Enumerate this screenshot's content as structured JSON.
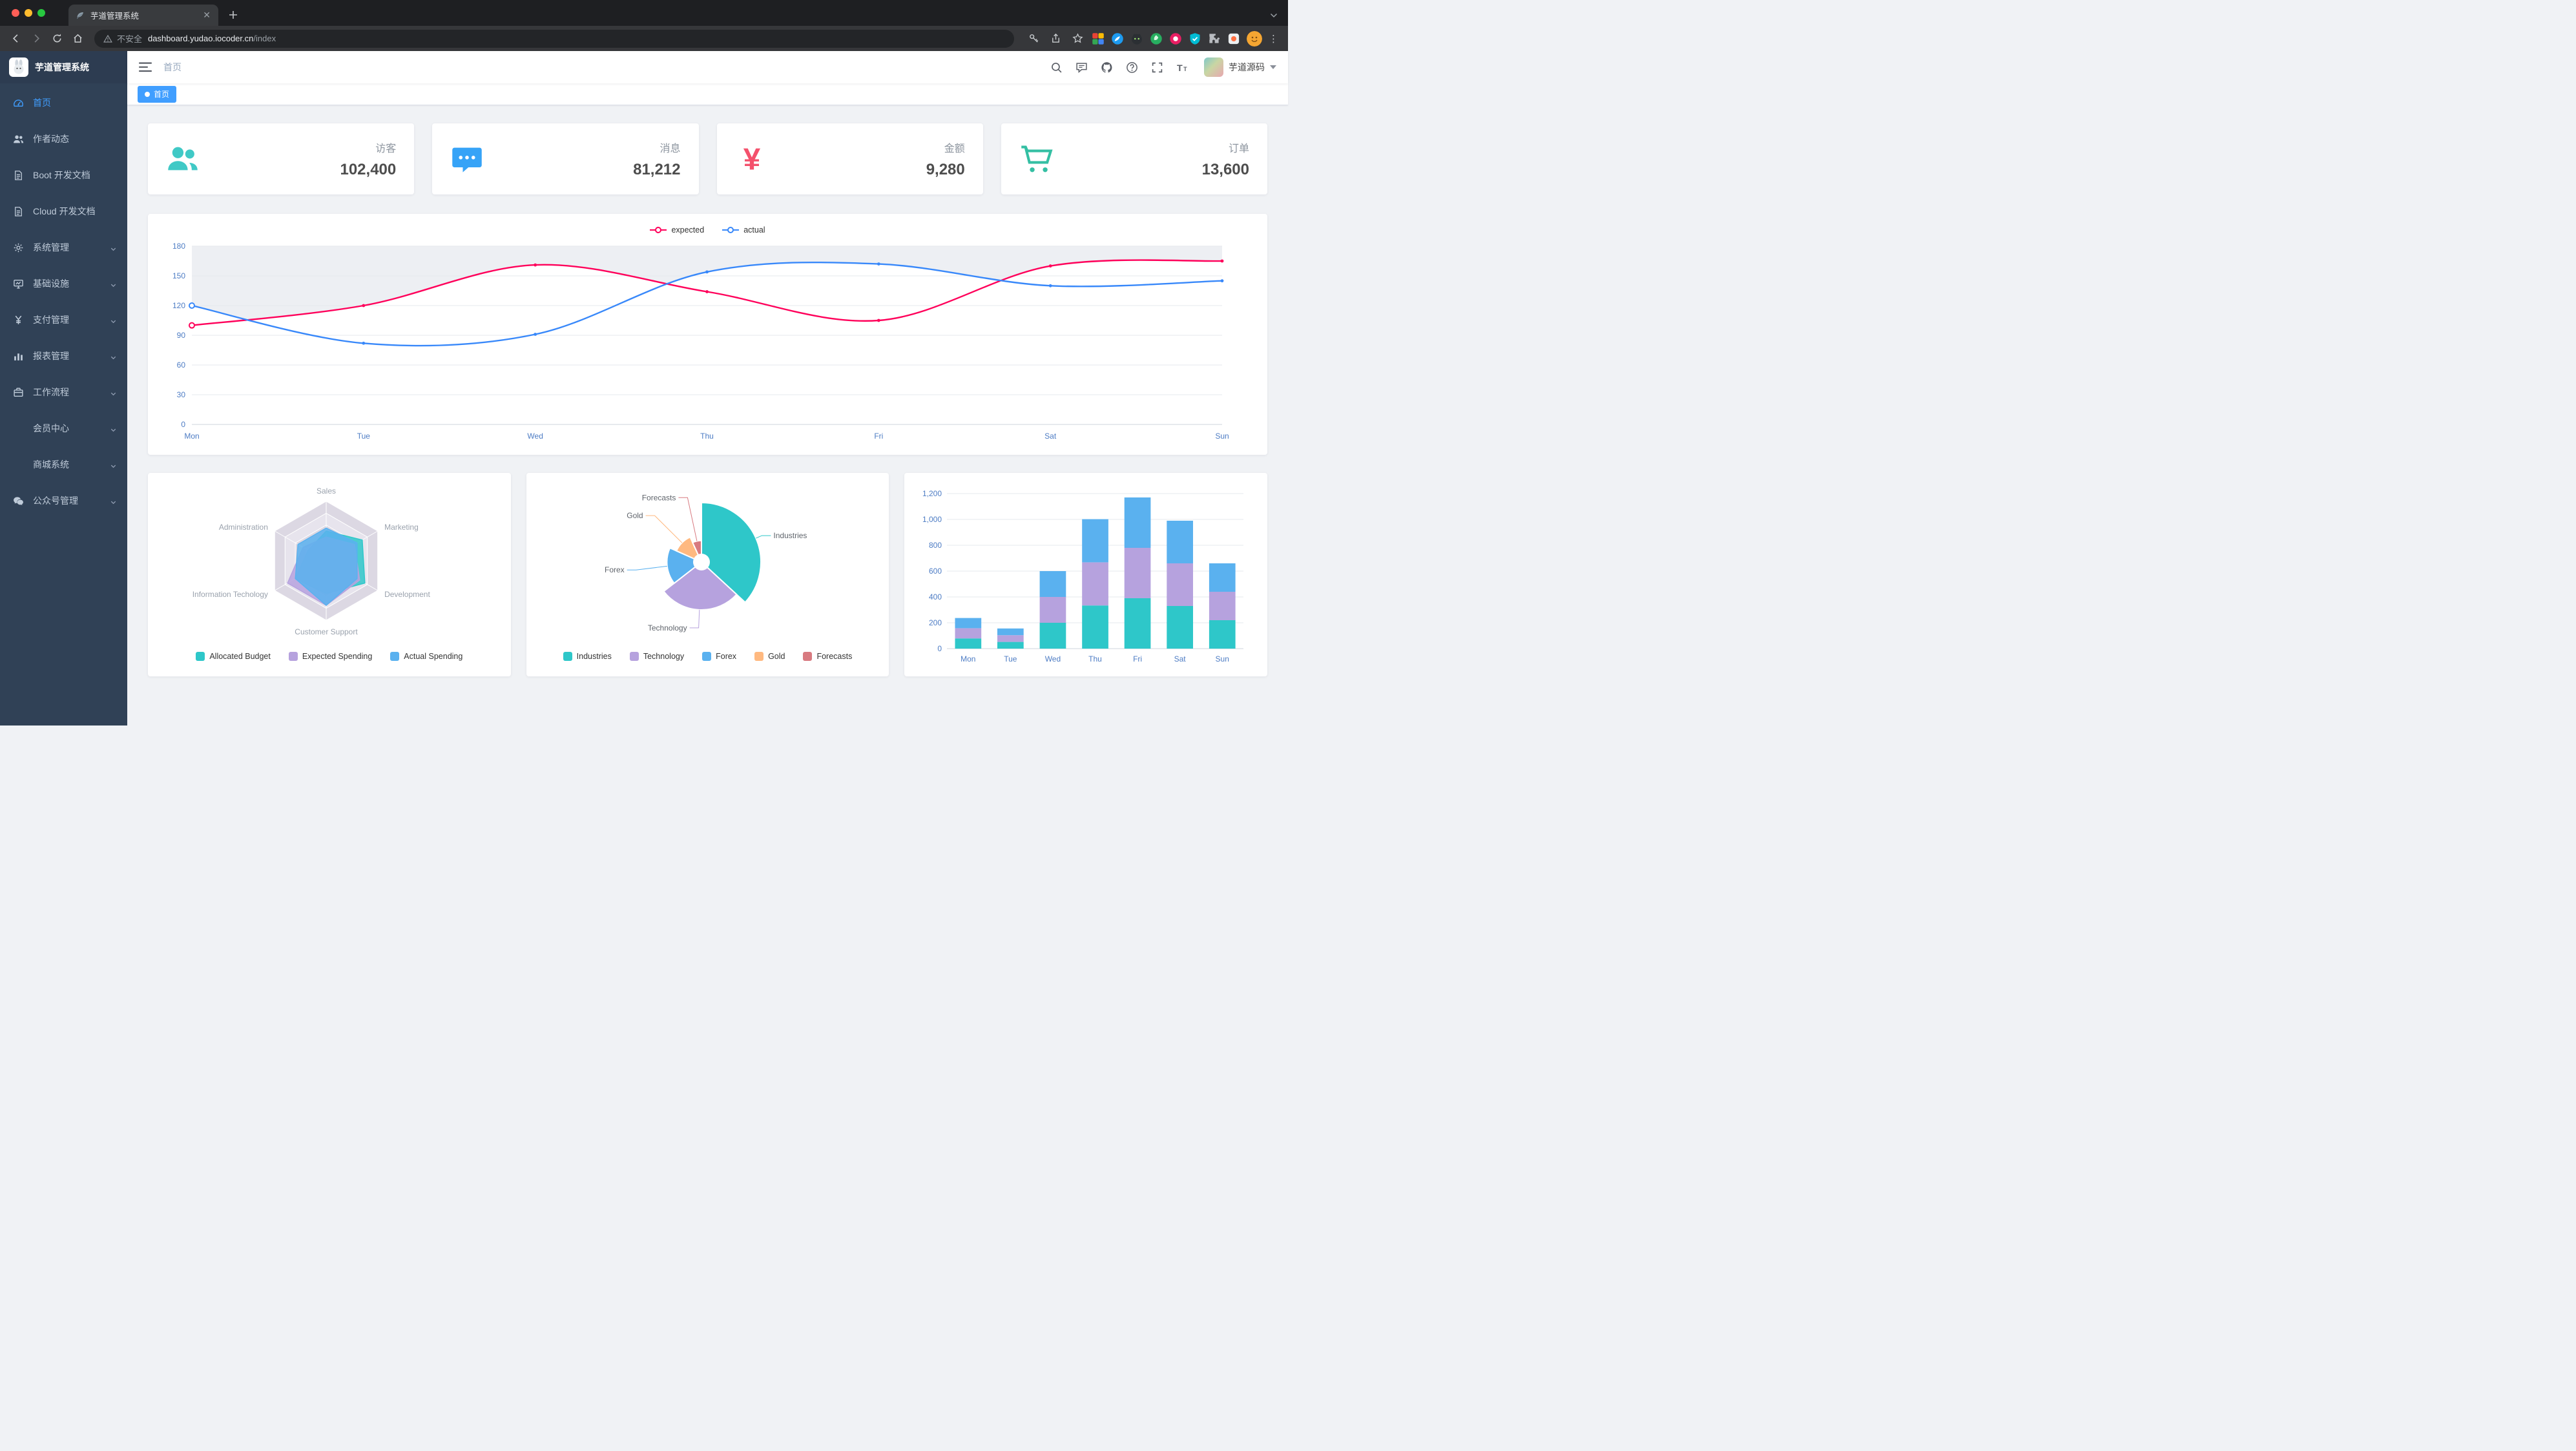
{
  "browser": {
    "tab_title": "芋道管理系统",
    "security_label": "不安全",
    "url_host": "dashboard.yudao.iocoder.cn",
    "url_path": "/index"
  },
  "theme": {
    "accent": "#409eff",
    "sidebar_bg": "#304156",
    "sidebar_text": "#bfcbd9"
  },
  "sidebar": {
    "logo_title": "芋道管理系统",
    "items": [
      {
        "key": "home",
        "label": "首页",
        "icon": "dashboard-icon",
        "active": true,
        "expandable": false
      },
      {
        "key": "author",
        "label": "作者动态",
        "icon": "people-icon",
        "active": false,
        "expandable": false
      },
      {
        "key": "boot-docs",
        "label": "Boot 开发文档",
        "icon": "document-icon",
        "active": false,
        "expandable": false
      },
      {
        "key": "cloud-docs",
        "label": "Cloud 开发文档",
        "icon": "document-icon",
        "active": false,
        "expandable": false
      },
      {
        "key": "system",
        "label": "系统管理",
        "icon": "gear-icon",
        "active": false,
        "expandable": true
      },
      {
        "key": "infra",
        "label": "基础设施",
        "icon": "monitor-icon",
        "active": false,
        "expandable": true
      },
      {
        "key": "payment",
        "label": "支付管理",
        "icon": "yen-icon",
        "active": false,
        "expandable": true
      },
      {
        "key": "report",
        "label": "报表管理",
        "icon": "chart-icon",
        "active": false,
        "expandable": true
      },
      {
        "key": "workflow",
        "label": "工作流程",
        "icon": "briefcase-icon",
        "active": false,
        "expandable": true
      },
      {
        "key": "member",
        "label": "会员中心",
        "icon": null,
        "active": false,
        "expandable": true
      },
      {
        "key": "mall",
        "label": "商城系统",
        "icon": null,
        "active": false,
        "expandable": true
      },
      {
        "key": "mp",
        "label": "公众号管理",
        "icon": "wechat-icon",
        "active": false,
        "expandable": true
      }
    ]
  },
  "navbar": {
    "breadcrumb": "首页",
    "username": "芋道源码",
    "icons": [
      "hamburger-icon",
      "search-icon",
      "message-icon",
      "github-icon",
      "help-icon",
      "fullscreen-icon",
      "font-size-icon",
      "caret-down-icon"
    ]
  },
  "tags": [
    {
      "label": "首页",
      "active": true
    }
  ],
  "stats": [
    {
      "label": "访客",
      "value": "102,400",
      "icon": "peoples-icon",
      "color": "#40c9c6"
    },
    {
      "label": "消息",
      "value": "81,212",
      "icon": "message-icon",
      "color": "#36a3f7"
    },
    {
      "label": "金额",
      "value": "9,280",
      "icon": "money-icon",
      "color": "#f4516c"
    },
    {
      "label": "订单",
      "value": "13,600",
      "icon": "cart-icon",
      "color": "#34bfa3"
    }
  ],
  "chart_data": [
    {
      "type": "line",
      "x": [
        "Mon",
        "Tue",
        "Wed",
        "Thu",
        "Fri",
        "Sat",
        "Sun"
      ],
      "series": [
        {
          "name": "expected",
          "color": "#FF005A",
          "values": [
            100,
            120,
            161,
            134,
            105,
            160,
            165
          ]
        },
        {
          "name": "actual",
          "color": "#3888fa",
          "values": [
            120,
            82,
            91,
            154,
            162,
            140,
            145
          ]
        }
      ],
      "ylim": [
        0,
        180
      ],
      "yticks": [
        0,
        30,
        60,
        90,
        120,
        150,
        180
      ],
      "legend_position": "top",
      "grid": true
    },
    {
      "type": "radar",
      "levels": 5,
      "indicators": [
        {
          "name": "Sales",
          "max": 10000
        },
        {
          "name": "Administration",
          "max": 20000
        },
        {
          "name": "Information Techology",
          "max": 20000
        },
        {
          "name": "Customer Support",
          "max": 20000
        },
        {
          "name": "Development",
          "max": 20000
        },
        {
          "name": "Marketing",
          "max": 20000
        }
      ],
      "series": [
        {
          "name": "Allocated Budget",
          "color": "#2ec7c9",
          "values": [
            5000,
            7000,
            12000,
            11000,
            15000,
            14000
          ]
        },
        {
          "name": "Expected Spending",
          "color": "#b6a2de",
          "values": [
            4000,
            9000,
            15000,
            15000,
            13000,
            11000
          ]
        },
        {
          "name": "Actual Spending",
          "color": "#5ab1ef",
          "values": [
            5500,
            11000,
            12000,
            15000,
            12000,
            12000
          ]
        }
      ],
      "legend_position": "bottom"
    },
    {
      "type": "pie",
      "rose": true,
      "slices": [
        {
          "name": "Industries",
          "value": 320,
          "color": "#2ec7c9"
        },
        {
          "name": "Technology",
          "value": 240,
          "color": "#b6a2de"
        },
        {
          "name": "Forex",
          "value": 149,
          "color": "#5ab1ef"
        },
        {
          "name": "Gold",
          "value": 100,
          "color": "#ffb980"
        },
        {
          "name": "Forecasts",
          "value": 59,
          "color": "#d87a80"
        }
      ],
      "legend_position": "bottom"
    },
    {
      "type": "bar",
      "stacked": true,
      "categories": [
        "Mon",
        "Tue",
        "Wed",
        "Thu",
        "Fri",
        "Sat",
        "Sun"
      ],
      "series": [
        {
          "name": "",
          "color": "#2ec7c9",
          "values": [
            79,
            52,
            200,
            334,
            390,
            330,
            220
          ]
        },
        {
          "name": "",
          "color": "#b6a2de",
          "values": [
            79,
            52,
            200,
            334,
            390,
            330,
            220
          ]
        },
        {
          "name": "",
          "color": "#5ab1ef",
          "values": [
            79,
            52,
            200,
            334,
            390,
            330,
            220
          ]
        }
      ],
      "yticks": [
        0,
        200,
        400,
        600,
        800,
        1000,
        1200
      ],
      "ylim": [
        0,
        1200
      ],
      "grid": true
    }
  ]
}
